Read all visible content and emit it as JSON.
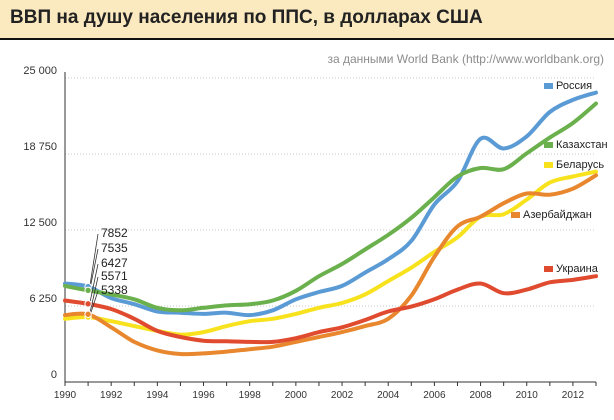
{
  "header": {
    "title": "ВВП на душу населения по ППС, в долларах США",
    "source": "за данными World Bank (http://www.worldbank.org)"
  },
  "colors": {
    "header_bg": "#fbe9bf",
    "axis": "#333333",
    "grid": "#c8c8c8"
  },
  "chart_data": {
    "type": "line",
    "title": "ВВП на душу населения по ППС, в долларах США",
    "subtitle": "за данными World Bank (http://www.worldbank.org)",
    "xlabel": "",
    "ylabel": "",
    "xlim": [
      1990,
      2013
    ],
    "ylim": [
      0,
      25000
    ],
    "y_ticks": [
      0,
      6250,
      12500,
      18750,
      25000
    ],
    "y_tick_labels": [
      "0",
      "6 250",
      "12 500",
      "18 750",
      "25 000"
    ],
    "x_ticks": [
      1990,
      1992,
      1994,
      1996,
      1998,
      2000,
      2002,
      2004,
      2006,
      2008,
      2010,
      2012
    ],
    "x_tick_labels": [
      "1990",
      "1992",
      "1994",
      "1996",
      "1998",
      "2000",
      "2002",
      "2004",
      "2006",
      "2008",
      "2010",
      "2012"
    ],
    "grid": "horizontal",
    "legend": "inline labels at right",
    "x": [
      1990,
      1991,
      1992,
      1993,
      1994,
      1995,
      1996,
      1997,
      1998,
      1999,
      2000,
      2001,
      2002,
      2003,
      2004,
      2005,
      2006,
      2007,
      2008,
      2009,
      2010,
      2011,
      2012,
      2013
    ],
    "series": [
      {
        "name": "Россия",
        "color": "#5b9bd5",
        "values": [
          8100,
          7852,
          6900,
          6400,
          5800,
          5700,
          5600,
          5700,
          5500,
          5900,
          6800,
          7400,
          7900,
          9000,
          10100,
          11600,
          14600,
          16500,
          20000,
          19200,
          20200,
          22200,
          23200,
          23800
        ]
      },
      {
        "name": "Казахстан",
        "color": "#6ab04c",
        "values": [
          7900,
          7535,
          7200,
          6800,
          6100,
          5900,
          6100,
          6300,
          6400,
          6700,
          7500,
          8700,
          9700,
          10900,
          12100,
          13500,
          15200,
          16900,
          17600,
          17500,
          18800,
          20100,
          21300,
          22900
        ]
      },
      {
        "name": "Беларусь",
        "color": "#f7e21d",
        "values": [
          5200,
          5338,
          5000,
          4600,
          4200,
          3900,
          4100,
          4600,
          5000,
          5200,
          5600,
          6100,
          6500,
          7200,
          8300,
          9400,
          10700,
          11900,
          13600,
          13800,
          15000,
          16400,
          16900,
          17300
        ]
      },
      {
        "name": "Азербайджан",
        "color": "#e8872e",
        "values": [
          5500,
          5571,
          4500,
          3300,
          2600,
          2300,
          2350,
          2500,
          2700,
          2900,
          3300,
          3700,
          4100,
          4600,
          5200,
          7100,
          10300,
          12800,
          13600,
          14700,
          15500,
          15400,
          15900,
          17000
        ]
      },
      {
        "name": "Украина",
        "color": "#e04a2e",
        "values": [
          6700,
          6427,
          6000,
          5200,
          4200,
          3700,
          3400,
          3350,
          3300,
          3300,
          3600,
          4100,
          4500,
          5100,
          5800,
          6200,
          6800,
          7600,
          8100,
          7300,
          7600,
          8200,
          8400,
          8700
        ]
      }
    ],
    "annotations": {
      "year": 1991,
      "labels": [
        "7852",
        "7535",
        "6427",
        "5571",
        "5338"
      ]
    }
  }
}
